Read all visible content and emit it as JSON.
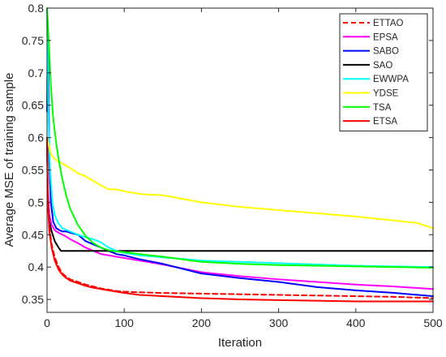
{
  "chart_data": {
    "type": "line",
    "title": "",
    "xlabel": "Iteration",
    "ylabel": "Average MSE of training sample",
    "xlim": [
      0,
      500
    ],
    "ylim": [
      0.33,
      0.8
    ],
    "xticks": [
      0,
      100,
      200,
      300,
      400,
      500
    ],
    "xtick_labels": [
      "0",
      "100",
      "200",
      "300",
      "400",
      "500"
    ],
    "yticks": [
      0.35,
      0.4,
      0.45,
      0.5,
      0.55,
      0.6,
      0.65,
      0.7,
      0.75,
      0.8
    ],
    "ytick_labels": [
      "0.35",
      "0.4",
      "0.45",
      "0.5",
      "0.55",
      "0.6",
      "0.65",
      "0.7",
      "0.75",
      "0.8"
    ],
    "grid": false,
    "legend_position": "top-right",
    "series": [
      {
        "name": "ETTAO",
        "color": "#ff0000",
        "style": "dashed",
        "x": [
          0,
          1,
          3,
          6,
          10,
          15,
          20,
          25,
          30,
          40,
          50,
          60,
          70,
          80,
          90,
          100,
          120,
          150,
          200,
          250,
          300,
          350,
          400,
          450,
          500
        ],
        "y": [
          0.6,
          0.51,
          0.46,
          0.435,
          0.415,
          0.4,
          0.39,
          0.385,
          0.381,
          0.377,
          0.373,
          0.37,
          0.367,
          0.365,
          0.363,
          0.362,
          0.361,
          0.36,
          0.359,
          0.358,
          0.357,
          0.356,
          0.355,
          0.354,
          0.352
        ]
      },
      {
        "name": "EPSA",
        "color": "#ff00ff",
        "style": "solid",
        "x": [
          0,
          1,
          3,
          6,
          10,
          15,
          20,
          25,
          30,
          40,
          50,
          60,
          70,
          80,
          90,
          100,
          120,
          150,
          200,
          250,
          300,
          350,
          400,
          450,
          500
        ],
        "y": [
          0.6,
          0.52,
          0.48,
          0.465,
          0.457,
          0.453,
          0.45,
          0.447,
          0.443,
          0.437,
          0.43,
          0.425,
          0.42,
          0.418,
          0.416,
          0.414,
          0.41,
          0.404,
          0.392,
          0.386,
          0.381,
          0.377,
          0.373,
          0.37,
          0.366
        ]
      },
      {
        "name": "SABO",
        "color": "#0000ff",
        "style": "solid",
        "x": [
          0,
          1,
          2,
          3,
          5,
          8,
          12,
          16,
          20,
          25,
          30,
          40,
          50,
          60,
          70,
          80,
          90,
          100,
          120,
          150,
          200,
          250,
          300,
          350,
          400,
          450,
          500
        ],
        "y": [
          0.64,
          0.78,
          0.68,
          0.56,
          0.5,
          0.47,
          0.46,
          0.457,
          0.455,
          0.455,
          0.453,
          0.45,
          0.44,
          0.435,
          0.43,
          0.425,
          0.42,
          0.418,
          0.412,
          0.405,
          0.39,
          0.383,
          0.377,
          0.369,
          0.364,
          0.36,
          0.355
        ]
      },
      {
        "name": "SAO",
        "color": "#000000",
        "style": "solid",
        "x": [
          0,
          1,
          3,
          6,
          10,
          15,
          18,
          25,
          50,
          100,
          200,
          300,
          400,
          500
        ],
        "y": [
          0.6,
          0.5,
          0.47,
          0.455,
          0.44,
          0.43,
          0.425,
          0.425,
          0.425,
          0.425,
          0.425,
          0.425,
          0.425,
          0.425
        ]
      },
      {
        "name": "EWWPA",
        "color": "#00ffff",
        "style": "solid",
        "x": [
          0,
          1,
          2,
          4,
          7,
          10,
          15,
          20,
          30,
          40,
          50,
          60,
          70,
          80,
          90,
          100,
          120,
          150,
          200,
          250,
          300,
          350,
          400,
          450,
          500
        ],
        "y": [
          0.8,
          0.72,
          0.62,
          0.55,
          0.5,
          0.48,
          0.467,
          0.46,
          0.455,
          0.45,
          0.446,
          0.443,
          0.438,
          0.43,
          0.425,
          0.422,
          0.418,
          0.415,
          0.41,
          0.408,
          0.406,
          0.404,
          0.402,
          0.401,
          0.4
        ]
      },
      {
        "name": "YDSE",
        "color": "#ffff00",
        "style": "solid",
        "x": [
          0,
          2,
          5,
          8,
          12,
          20,
          30,
          40,
          50,
          60,
          70,
          80,
          90,
          100,
          120,
          130,
          150,
          200,
          250,
          300,
          350,
          400,
          450,
          480,
          500
        ],
        "y": [
          0.6,
          0.59,
          0.575,
          0.57,
          0.565,
          0.56,
          0.553,
          0.545,
          0.54,
          0.533,
          0.526,
          0.52,
          0.52,
          0.517,
          0.513,
          0.512,
          0.511,
          0.5,
          0.493,
          0.488,
          0.483,
          0.478,
          0.472,
          0.468,
          0.46
        ]
      },
      {
        "name": "TSA",
        "color": "#00ff00",
        "style": "solid",
        "x": [
          0,
          1,
          3,
          5,
          8,
          12,
          16,
          20,
          25,
          30,
          40,
          50,
          60,
          70,
          80,
          90,
          100,
          120,
          150,
          200,
          250,
          300,
          350,
          400,
          450,
          500
        ],
        "y": [
          0.8,
          0.78,
          0.73,
          0.68,
          0.63,
          0.59,
          0.56,
          0.535,
          0.51,
          0.49,
          0.465,
          0.448,
          0.437,
          0.43,
          0.426,
          0.424,
          0.423,
          0.42,
          0.416,
          0.408,
          0.405,
          0.403,
          0.402,
          0.401,
          0.4,
          0.399
        ]
      },
      {
        "name": "ETSA",
        "color": "#ff0000",
        "style": "solid",
        "x": [
          0,
          1,
          3,
          6,
          10,
          15,
          20,
          25,
          30,
          40,
          50,
          60,
          70,
          80,
          90,
          100,
          120,
          150,
          200,
          250,
          300,
          350,
          400,
          450,
          500
        ],
        "y": [
          0.6,
          0.5,
          0.455,
          0.43,
          0.41,
          0.396,
          0.388,
          0.383,
          0.379,
          0.375,
          0.371,
          0.368,
          0.366,
          0.364,
          0.362,
          0.36,
          0.357,
          0.355,
          0.352,
          0.35,
          0.349,
          0.348,
          0.347,
          0.347,
          0.347
        ]
      }
    ]
  }
}
